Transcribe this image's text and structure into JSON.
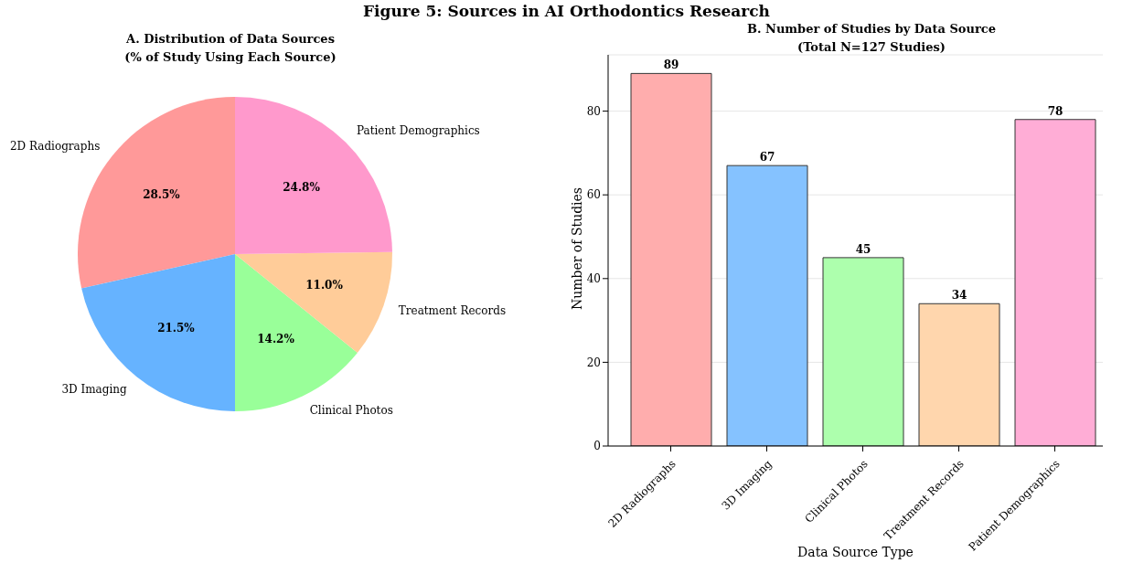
{
  "chart_data": [
    {
      "type": "pie",
      "title": "A. Distribution of Data Sources\n(% of Study Using Each Source)",
      "annotations": [
        "Figure 5: Sources in AI Orthodontics Research"
      ],
      "categories": [
        "2D Radiographs",
        "3D Imaging",
        "Clinical Photos",
        "Treatment Records",
        "Patient Demographics"
      ],
      "values": [
        28.5,
        21.5,
        14.2,
        11.0,
        24.8
      ],
      "value_labels": [
        "28.5%",
        "21.5%",
        "14.2%",
        "11.0%",
        "24.8%"
      ],
      "colors": [
        "#ff9999",
        "#66b3ff",
        "#99ff99",
        "#ffcc99",
        "#ff99cc"
      ]
    },
    {
      "type": "bar",
      "title": "B. Number of Studies by Data Source\n(Total N=127 Studies)",
      "xlabel": "Data Source Type",
      "ylabel": "Number of Studies",
      "categories": [
        "2D Radiographs",
        "3D Imaging",
        "Clinical Photos",
        "Treatment Records",
        "Patient Demographics"
      ],
      "values": [
        89,
        67,
        45,
        34,
        78
      ],
      "colors": [
        "#ffadad",
        "#85c2ff",
        "#adffad",
        "#ffd6ad",
        "#ffadd6"
      ],
      "ylim": [
        0,
        93.45
      ],
      "yticks": [
        0,
        20,
        40,
        60,
        80
      ],
      "grid": "y",
      "data_labels": true
    }
  ]
}
